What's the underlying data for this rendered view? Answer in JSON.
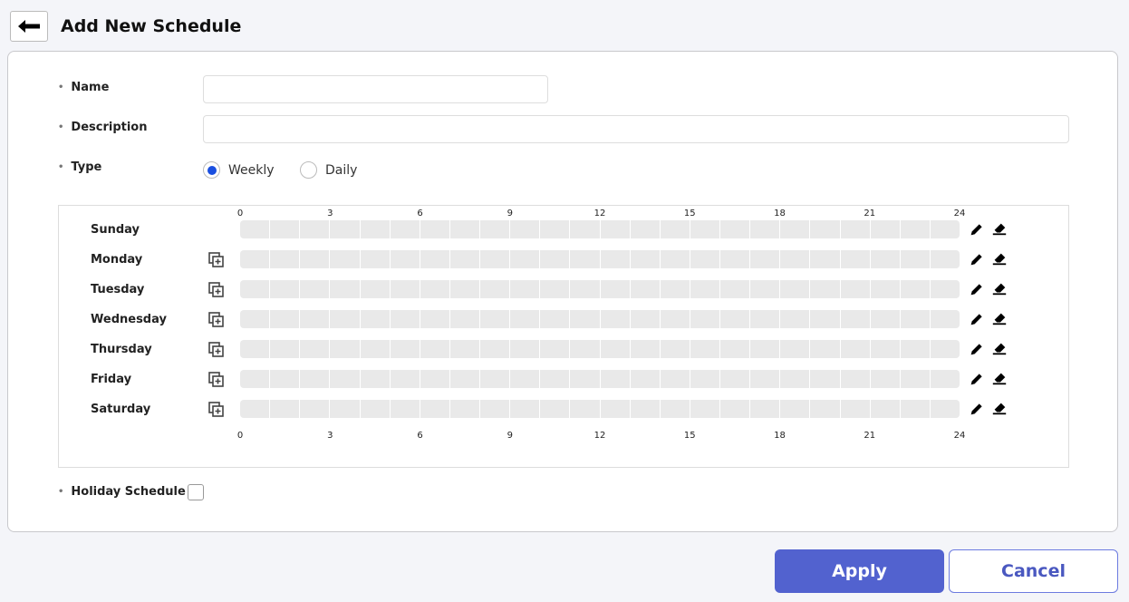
{
  "header": {
    "title": "Add New Schedule",
    "back_icon": "arrow-left-icon"
  },
  "form": {
    "name_label": "Name",
    "name_value": "",
    "description_label": "Description",
    "description_value": "",
    "type_label": "Type",
    "type_options": [
      {
        "label": "Weekly",
        "selected": true
      },
      {
        "label": "Daily",
        "selected": false
      }
    ],
    "holiday_label": "Holiday Schedule",
    "holiday_checked": false
  },
  "schedule": {
    "hour_ticks": [
      "0",
      "3",
      "6",
      "9",
      "12",
      "15",
      "18",
      "21",
      "24"
    ],
    "days": [
      "Sunday",
      "Monday",
      "Tuesday",
      "Wednesday",
      "Thursday",
      "Friday",
      "Saturday"
    ]
  },
  "buttons": {
    "apply": "Apply",
    "cancel": "Cancel"
  },
  "colors": {
    "accent": "#5262cf",
    "radio_selected": "#1a4fe0"
  }
}
